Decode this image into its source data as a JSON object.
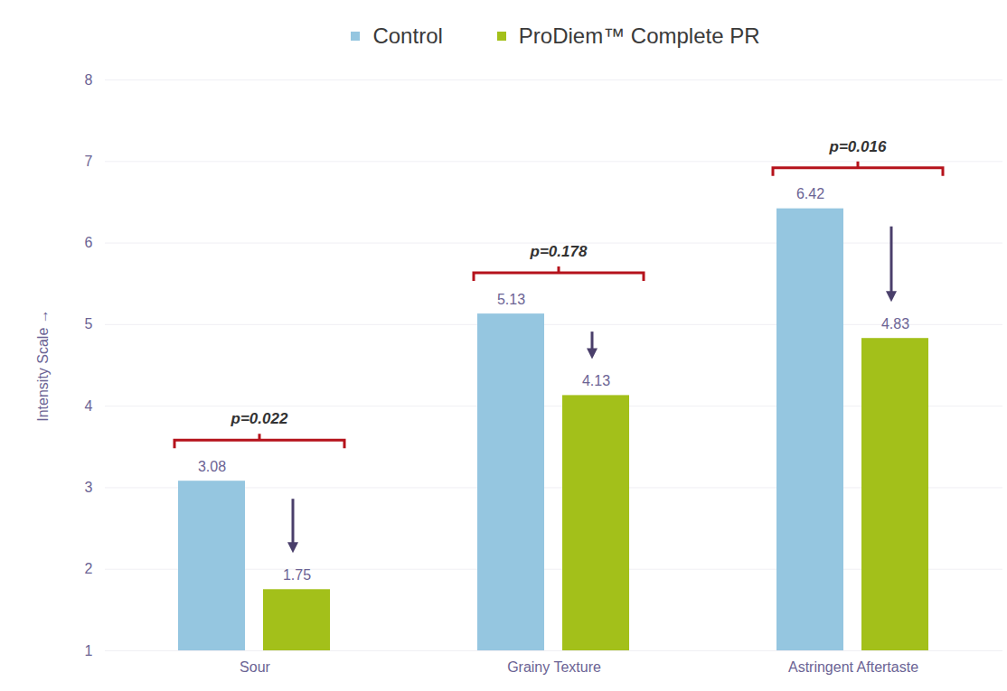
{
  "chart_data": {
    "type": "bar",
    "categories": [
      "Sour",
      "Grainy Texture",
      "Astringent Aftertaste"
    ],
    "series": [
      {
        "name": "Control",
        "color": "#95c6e0",
        "values": [
          3.08,
          5.13,
          6.42
        ]
      },
      {
        "name": "ProDiem™ Complete PR",
        "color": "#a3c01a",
        "values": [
          1.75,
          4.13,
          4.83
        ]
      }
    ],
    "ylabel": "Intensity Scale",
    "ylim": [
      1,
      8
    ],
    "yticks": [
      1,
      2,
      3,
      4,
      5,
      6,
      7,
      8
    ],
    "grid": true,
    "legend": "top",
    "data_labels": true,
    "annotations": [
      "p=0.022",
      "p=0.178",
      "p=0.016"
    ]
  }
}
